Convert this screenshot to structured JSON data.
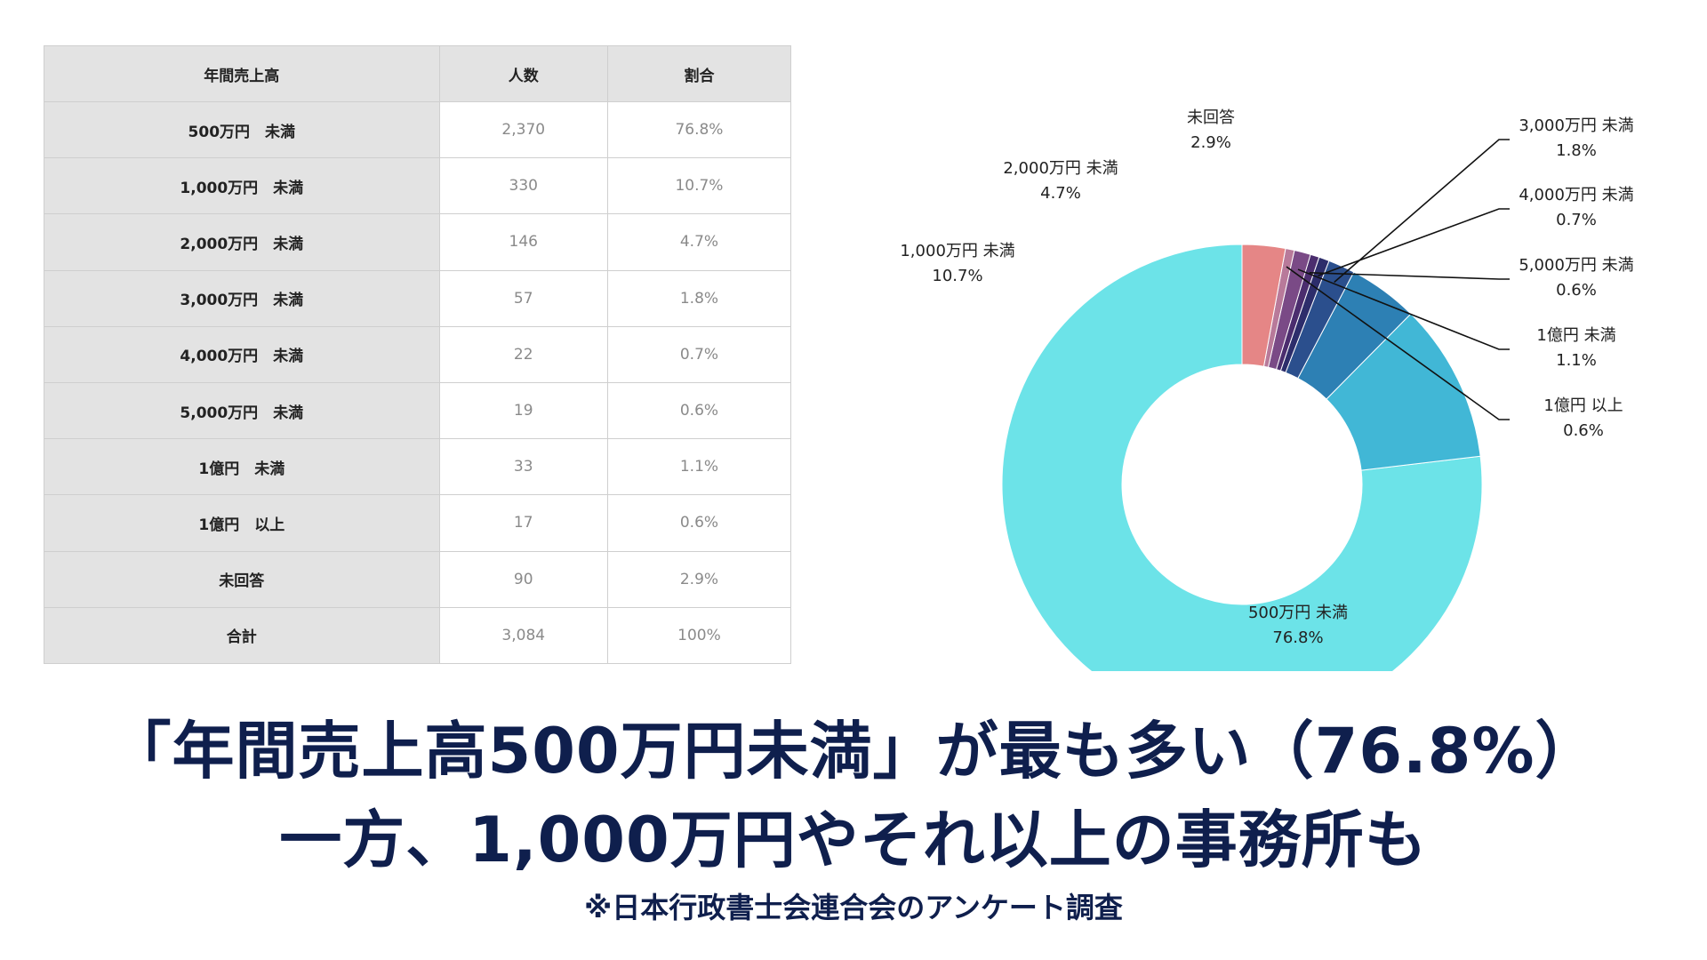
{
  "table": {
    "headers": [
      "年間売上高",
      "人数",
      "割合"
    ],
    "rows": [
      {
        "label": "500万円　未満",
        "count": "2,370",
        "ratio": "76.8%"
      },
      {
        "label": "1,000万円　未満",
        "count": "330",
        "ratio": "10.7%"
      },
      {
        "label": "2,000万円　未満",
        "count": "146",
        "ratio": "4.7%"
      },
      {
        "label": "3,000万円　未満",
        "count": "57",
        "ratio": "1.8%"
      },
      {
        "label": "4,000万円　未満",
        "count": "22",
        "ratio": "0.7%"
      },
      {
        "label": "5,000万円　未満",
        "count": "19",
        "ratio": "0.6%"
      },
      {
        "label": "1億円　未満",
        "count": "33",
        "ratio": "1.1%"
      },
      {
        "label": "1億円　以上",
        "count": "17",
        "ratio": "0.6%"
      },
      {
        "label": "未回答",
        "count": "90",
        "ratio": "2.9%"
      },
      {
        "label": "合計",
        "count": "3,084",
        "ratio": "100%"
      }
    ]
  },
  "chart_data": {
    "type": "pie",
    "donut": true,
    "title": "",
    "slices": [
      {
        "label": "500万円 未満",
        "value": 76.8,
        "value_label": "76.8%",
        "color": "#6ce3e8"
      },
      {
        "label": "1,000万円 未満",
        "value": 10.7,
        "value_label": "10.7%",
        "color": "#41b7d6"
      },
      {
        "label": "2,000万円 未満",
        "value": 4.7,
        "value_label": "4.7%",
        "color": "#2d80b4"
      },
      {
        "label": "3,000万円 未満",
        "value": 1.8,
        "value_label": "1.8%",
        "color": "#2b4f8d"
      },
      {
        "label": "4,000万円 未満",
        "value": 0.7,
        "value_label": "0.7%",
        "color": "#2d2d6b"
      },
      {
        "label": "5,000万円 未満",
        "value": 0.6,
        "value_label": "0.6%",
        "color": "#4b2d6e"
      },
      {
        "label": "1億円 未満",
        "value": 1.1,
        "value_label": "1.1%",
        "color": "#7a4a86"
      },
      {
        "label": "1億円 以上",
        "value": 0.6,
        "value_label": "0.6%",
        "color": "#b87a9a"
      },
      {
        "label": "未回答",
        "value": 2.9,
        "value_label": "2.9%",
        "color": "#e58686"
      }
    ]
  },
  "caption": {
    "line1": "「年間売上高500万円未満」が最も多い（76.8%）",
    "line2": "一方、1,000万円やそれ以上の事務所も",
    "note": "※日本行政書士会連合会のアンケート調査"
  },
  "colors": {
    "caption_text": "#0f1f4d",
    "table_header_bg": "#e3e3e3"
  }
}
